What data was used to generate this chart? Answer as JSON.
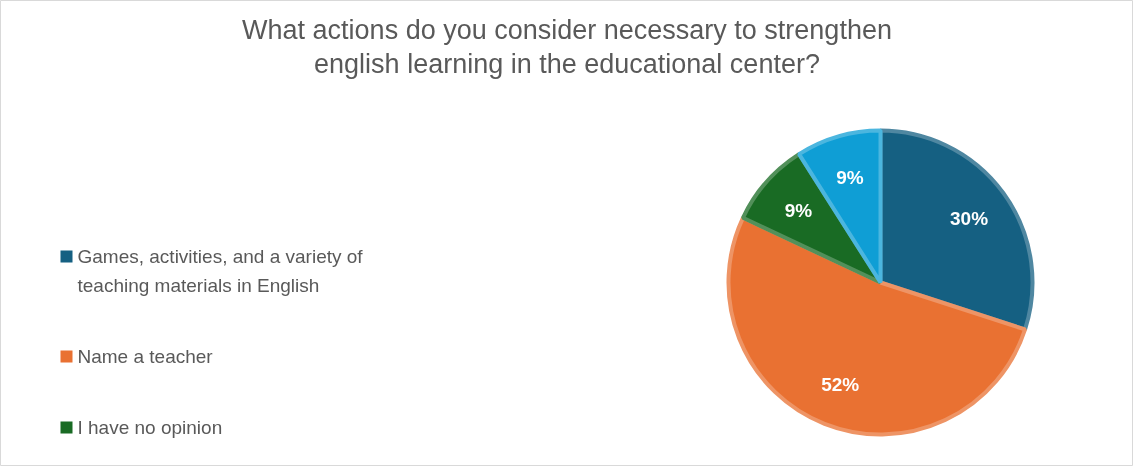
{
  "chart_data": {
    "type": "pie",
    "title": "What actions do you consider necessary to strengthen english learning in the educational center?",
    "categories": [
      "Games, activities, and a variety of teaching materials in English",
      "Name a teacher",
      "I have no opinion",
      null
    ],
    "values": [
      30,
      52,
      9,
      9
    ],
    "value_labels": [
      "30%",
      "52%",
      "9%",
      "9%"
    ],
    "colors": [
      "#156082",
      "#e97132",
      "#196b24",
      "#0f9ed5"
    ],
    "legend": "left"
  }
}
